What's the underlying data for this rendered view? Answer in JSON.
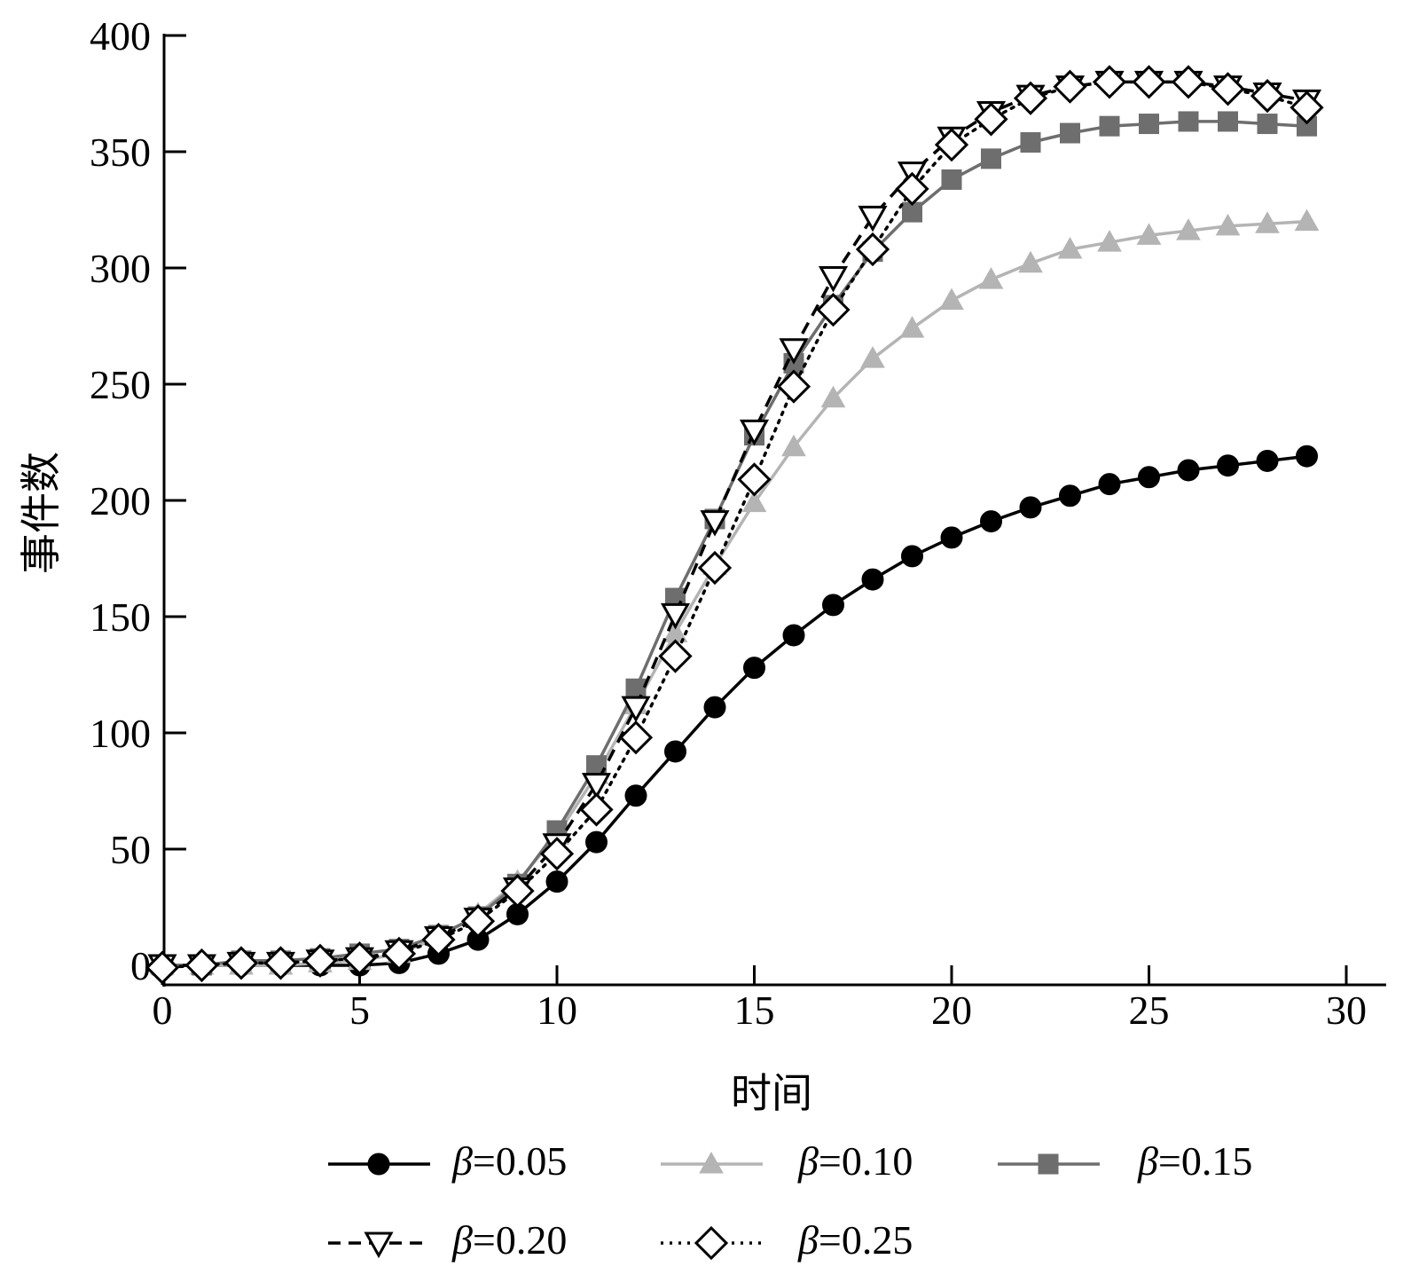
{
  "chart_data": {
    "type": "line",
    "title": "",
    "xlabel": "时间",
    "ylabel": "事件数",
    "xlim": [
      0,
      30
    ],
    "ylim": [
      0,
      400
    ],
    "xticks": [
      0,
      5,
      10,
      15,
      20,
      25,
      30
    ],
    "yticks": [
      0,
      50,
      100,
      150,
      200,
      250,
      300,
      350,
      400
    ],
    "grid": false,
    "legend_position": "bottom",
    "x": [
      0,
      1,
      2,
      3,
      4,
      5,
      6,
      7,
      8,
      9,
      10,
      11,
      12,
      13,
      14,
      15,
      16,
      17,
      18,
      19,
      20,
      21,
      22,
      23,
      24,
      25,
      26,
      27,
      28,
      29
    ],
    "series": [
      {
        "name": "β=0.05",
        "symbol": "β",
        "value_text": "=0.05",
        "color": "#000000",
        "line_style": "solid",
        "marker": "circle",
        "marker_fill": "#000000",
        "values": [
          0,
          0,
          0,
          0,
          0,
          0,
          1,
          5,
          11,
          22,
          36,
          53,
          73,
          92,
          111,
          128,
          142,
          155,
          166,
          176,
          184,
          191,
          197,
          202,
          207,
          210,
          213,
          215,
          217,
          219
        ]
      },
      {
        "name": "β=0.10",
        "symbol": "β",
        "value_text": "=0.10",
        "color": "#b4b4b4",
        "line_style": "solid",
        "marker": "triangle-up",
        "marker_fill": "#b4b4b4",
        "values": [
          0,
          0,
          0,
          0,
          1,
          2,
          5,
          12,
          22,
          36,
          56,
          82,
          112,
          143,
          172,
          199,
          223,
          244,
          261,
          274,
          286,
          295,
          302,
          308,
          311,
          314,
          316,
          318,
          319,
          320
        ]
      },
      {
        "name": "β=0.15",
        "symbol": "β",
        "value_text": "=0.15",
        "color": "#6e6e6e",
        "line_style": "solid",
        "marker": "square",
        "marker_fill": "#6e6e6e",
        "values": [
          0,
          0,
          2,
          2,
          3,
          5,
          7,
          13,
          21,
          35,
          58,
          86,
          119,
          158,
          192,
          228,
          259,
          284,
          307,
          324,
          338,
          347,
          354,
          358,
          361,
          362,
          363,
          363,
          362,
          361
        ]
      },
      {
        "name": "β=0.20",
        "symbol": "β",
        "value_text": "=0.20",
        "color": "#000000",
        "line_style": "dashed",
        "marker": "triangle-down",
        "marker_fill": "#ffffff",
        "values": [
          0,
          0,
          1,
          1,
          2,
          3,
          6,
          12,
          20,
          33,
          52,
          78,
          111,
          151,
          191,
          230,
          265,
          296,
          322,
          341,
          356,
          367,
          374,
          378,
          380,
          380,
          380,
          378,
          375,
          372
        ]
      },
      {
        "name": "β=0.25",
        "symbol": "β",
        "value_text": "=0.25",
        "color": "#000000",
        "line_style": "dotted",
        "marker": "diamond",
        "marker_fill": "#ffffff",
        "values": [
          -1,
          0,
          1,
          1,
          2,
          3,
          5,
          11,
          19,
          32,
          48,
          67,
          98,
          133,
          171,
          209,
          249,
          282,
          308,
          334,
          353,
          364,
          373,
          378,
          380,
          380,
          380,
          377,
          374,
          369
        ]
      }
    ]
  }
}
